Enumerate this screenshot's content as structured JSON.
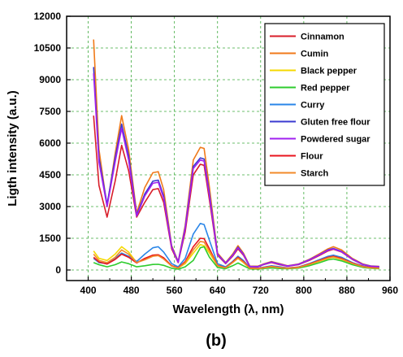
{
  "chart_data": {
    "type": "line",
    "xlabel": "Wavelength (λ, nm)",
    "ylabel": "Ligth intensity (a.u.)",
    "caption": "(b)",
    "xlim": [
      360,
      960
    ],
    "ylim": [
      -500,
      12000
    ],
    "xticks": [
      "400",
      "480",
      "560",
      "640",
      "720",
      "800",
      "880",
      "960"
    ],
    "yticks": [
      "0",
      "1500",
      "3000",
      "4500",
      "6000",
      "7500",
      "9000",
      "10500",
      "12000"
    ],
    "grid": true,
    "legend_position": "top-right",
    "x": [
      410,
      420,
      435,
      450,
      462,
      475,
      490,
      505,
      520,
      530,
      540,
      555,
      567,
      580,
      595,
      608,
      615,
      625,
      640,
      655,
      668,
      678,
      688,
      700,
      715,
      725,
      740,
      755,
      770,
      790,
      810,
      830,
      845,
      855,
      870,
      890,
      910,
      925,
      940
    ],
    "series": [
      {
        "name": "Cinnamon",
        "color": "#d81e2a",
        "values": [
          7300,
          4000,
          2500,
          4200,
          5900,
          4700,
          2500,
          3200,
          3800,
          3850,
          3200,
          1000,
          350,
          1800,
          4500,
          5000,
          4950,
          3300,
          700,
          300,
          650,
          1000,
          700,
          150,
          150,
          250,
          350,
          250,
          180,
          250,
          450,
          700,
          900,
          980,
          850,
          500,
          250,
          170,
          150
        ]
      },
      {
        "name": "Cumin",
        "color": "#f07a1a",
        "values": [
          10900,
          5700,
          3000,
          5500,
          7300,
          5700,
          2700,
          3900,
          4600,
          4650,
          3800,
          1150,
          400,
          2100,
          5200,
          5800,
          5750,
          3900,
          800,
          350,
          750,
          1150,
          800,
          180,
          180,
          280,
          400,
          300,
          200,
          280,
          500,
          780,
          1000,
          1100,
          950,
          550,
          280,
          190,
          170
        ]
      },
      {
        "name": "Black pepper",
        "color": "#f5d800",
        "values": [
          900,
          550,
          450,
          750,
          1100,
          850,
          350,
          500,
          700,
          720,
          550,
          200,
          100,
          300,
          800,
          1200,
          1150,
          800,
          200,
          100,
          350,
          550,
          350,
          80,
          60,
          100,
          150,
          100,
          80,
          120,
          250,
          420,
          550,
          600,
          500,
          300,
          150,
          100,
          80
        ]
      },
      {
        "name": "Red pepper",
        "color": "#2ecc2e",
        "values": [
          350,
          250,
          150,
          250,
          380,
          300,
          150,
          200,
          260,
          270,
          220,
          80,
          40,
          150,
          450,
          1050,
          1100,
          600,
          120,
          60,
          200,
          330,
          200,
          50,
          40,
          70,
          100,
          70,
          60,
          90,
          200,
          350,
          480,
          520,
          430,
          250,
          120,
          80,
          60
        ]
      },
      {
        "name": "Curry",
        "color": "#2a86e8",
        "values": [
          550,
          350,
          300,
          550,
          800,
          650,
          400,
          750,
          1050,
          1100,
          850,
          300,
          150,
          550,
          1700,
          2200,
          2150,
          1400,
          300,
          150,
          400,
          650,
          450,
          100,
          80,
          130,
          200,
          150,
          100,
          140,
          300,
          500,
          650,
          700,
          600,
          350,
          180,
          120,
          100
        ]
      },
      {
        "name": "Gluten free flour",
        "color": "#3a3ad0",
        "values": [
          9600,
          5300,
          3100,
          5300,
          6900,
          5400,
          2600,
          3600,
          4200,
          4250,
          3500,
          1100,
          380,
          2000,
          4900,
          5300,
          5250,
          3600,
          750,
          330,
          700,
          1080,
          750,
          170,
          160,
          260,
          380,
          280,
          190,
          270,
          480,
          740,
          950,
          1020,
          880,
          520,
          260,
          180,
          160
        ]
      },
      {
        "name": "Powdered sugar",
        "color": "#a020f0",
        "values": [
          9300,
          5100,
          3000,
          5100,
          6700,
          5200,
          2550,
          3500,
          4100,
          4150,
          3400,
          1080,
          370,
          1950,
          4800,
          5200,
          5150,
          3500,
          730,
          320,
          680,
          1050,
          730,
          165,
          155,
          255,
          370,
          275,
          185,
          265,
          470,
          730,
          930,
          1000,
          860,
          510,
          255,
          175,
          155
        ]
      },
      {
        "name": "Flour",
        "color": "#e8141e",
        "values": [
          600,
          380,
          280,
          500,
          750,
          600,
          330,
          550,
          700,
          720,
          580,
          200,
          100,
          400,
          1100,
          1500,
          1480,
          1000,
          220,
          110,
          380,
          600,
          400,
          90,
          70,
          110,
          170,
          120,
          90,
          130,
          280,
          460,
          600,
          650,
          550,
          330,
          160,
          110,
          90
        ]
      },
      {
        "name": "Starch",
        "color": "#f28a2a",
        "values": [
          750,
          450,
          350,
          600,
          950,
          750,
          350,
          480,
          650,
          680,
          520,
          180,
          90,
          350,
          950,
          1350,
          1320,
          900,
          200,
          100,
          350,
          560,
          370,
          80,
          60,
          100,
          160,
          110,
          80,
          120,
          260,
          440,
          570,
          620,
          520,
          310,
          150,
          100,
          80
        ]
      }
    ]
  }
}
